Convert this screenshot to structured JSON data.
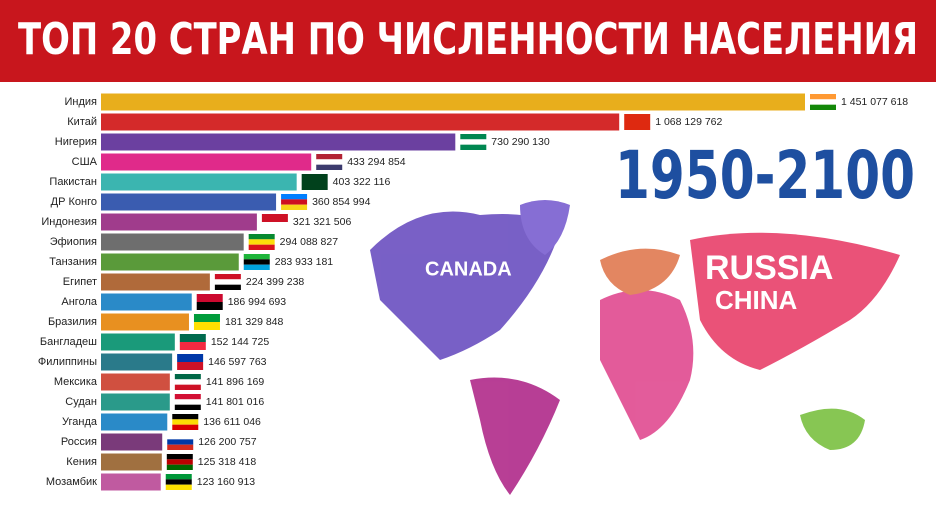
{
  "chart_data": {
    "type": "hbar",
    "title": "ТОП 20 СТРАН ПО ЧИСЛЕННОСТИ НАСЕЛЕНИЯ",
    "annotation": "1950-2100",
    "categories": [
      "Индия",
      "Китай",
      "Нигерия",
      "США",
      "Пакистан",
      "ДР Конго",
      "Индонезия",
      "Эфиопия",
      "Танзания",
      "Египет",
      "Ангола",
      "Бразилия",
      "Бангладеш",
      "Филиппины",
      "Мексика",
      "Судан",
      "Уганда",
      "Россия",
      "Кения",
      "Мозамбик"
    ],
    "values": [
      1451077618,
      1068129762,
      730290130,
      433294854,
      403322116,
      360854994,
      321321506,
      294088827,
      283933181,
      224399238,
      186994693,
      181329848,
      152144725,
      146597763,
      141896169,
      141801016,
      136611046,
      126200757,
      125318418,
      123160913
    ],
    "value_labels": [
      "1 451 077 618",
      "1 068 129 762",
      "730 290 130",
      "433 294 854",
      "403 322 116",
      "360 854 994",
      "321 321 506",
      "294 088 827",
      "283 933 181",
      "224 399 238",
      "186 994 693",
      "181 329 848",
      "152 144 725",
      "146 597 763",
      "141 896 169",
      "141 801 016",
      "136 611 046",
      "126 200 757",
      "125 318 418",
      "123 160 913"
    ],
    "colors": [
      "#e8ae1c",
      "#d42a2a",
      "#6b40a0",
      "#e02a8a",
      "#3bb5b0",
      "#3a5cb0",
      "#a03c8c",
      "#6e6e6e",
      "#5a9a3a",
      "#b06a3a",
      "#2a8ac8",
      "#e89020",
      "#1a9a7a",
      "#2a7a8a",
      "#d05040",
      "#2a9a8a",
      "#2a8ac8",
      "#7a3a7a",
      "#a07040",
      "#c05aa0"
    ]
  }
}
